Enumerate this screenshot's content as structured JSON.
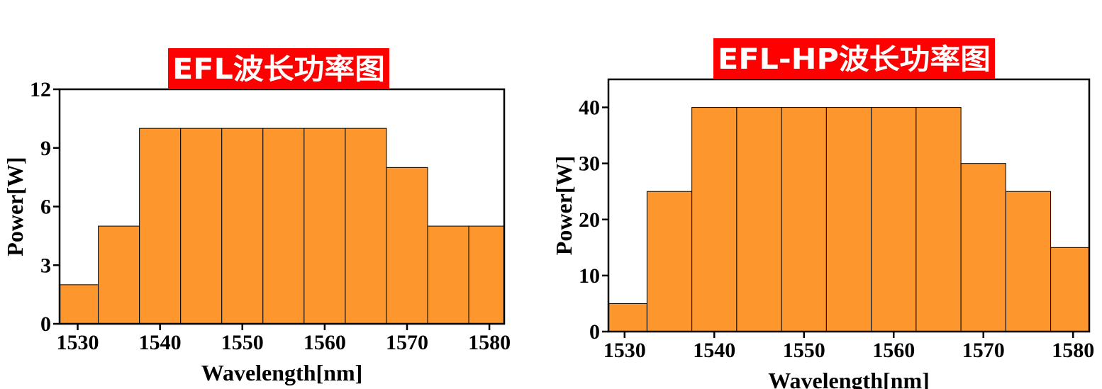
{
  "colors": {
    "bar_fill": "#fc962d",
    "bar_stroke": "#000000",
    "title_bg": "#ff0000",
    "title_text": "#ffffff"
  },
  "chart_data": [
    {
      "type": "bar",
      "title": "EFL波长功率图",
      "xlabel": "Wavelength[nm]",
      "ylabel": "Power[W]",
      "x": [
        1530,
        1535,
        1540,
        1545,
        1550,
        1555,
        1560,
        1565,
        1570,
        1575,
        1580
      ],
      "values": [
        2,
        5,
        10,
        10,
        10,
        10,
        10,
        10,
        8,
        5,
        5
      ],
      "xlim": [
        1527.8,
        1581.8
      ],
      "ylim": [
        0,
        12
      ],
      "xticks": [
        1530,
        1540,
        1550,
        1560,
        1570,
        1580
      ],
      "yticks": [
        0,
        3,
        6,
        9,
        12
      ],
      "grid": false,
      "legend": "none"
    },
    {
      "type": "bar",
      "title": "EFL-HP波长功率图",
      "xlabel": "Wavelength[nm]",
      "ylabel": "Power[W]",
      "x": [
        1530,
        1535,
        1540,
        1545,
        1550,
        1555,
        1560,
        1565,
        1570,
        1575,
        1580
      ],
      "values": [
        5,
        25,
        40,
        40,
        40,
        40,
        40,
        40,
        30,
        25,
        15
      ],
      "xlim": [
        1528.2,
        1581.8
      ],
      "ylim": [
        0,
        45
      ],
      "xticks": [
        1530,
        1540,
        1550,
        1560,
        1570,
        1580
      ],
      "yticks": [
        0,
        10,
        20,
        30,
        40
      ],
      "grid": false,
      "legend": "none"
    }
  ]
}
